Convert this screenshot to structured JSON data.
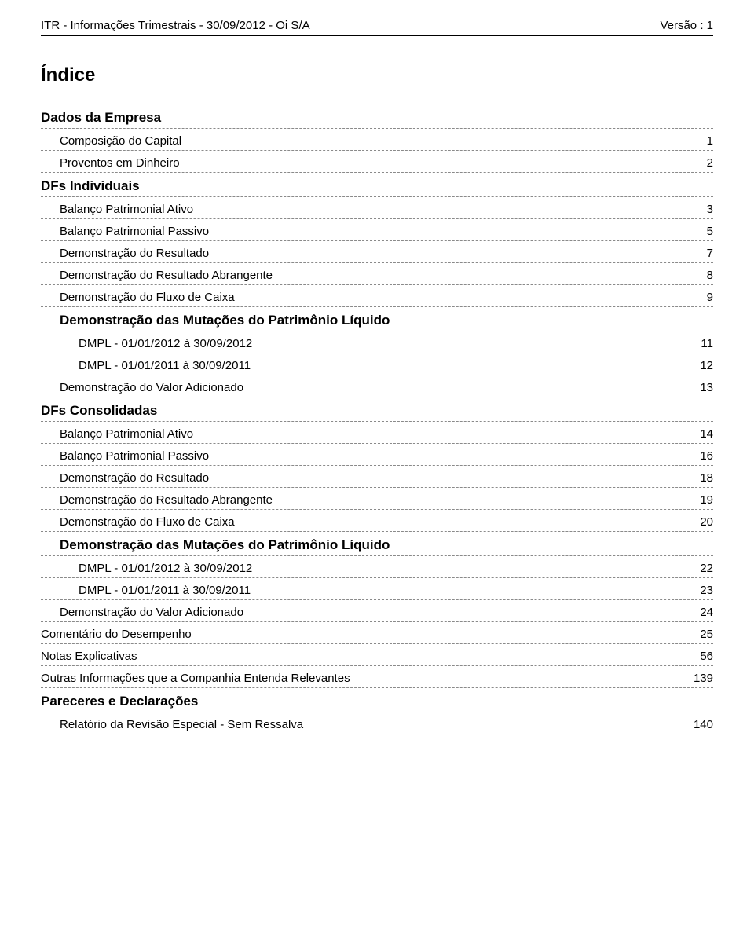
{
  "header": {
    "left": "ITR - Informações Trimestrais - 30/09/2012 - Oi S/A",
    "right": "Versão : 1"
  },
  "title": "Índice",
  "toc": [
    {
      "label": "Dados da Empresa",
      "page": "",
      "level": 0,
      "bold": true,
      "name": "toc-dados-empresa"
    },
    {
      "label": "Composição do Capital",
      "page": "1",
      "level": 1,
      "bold": false,
      "name": "toc-composicao-capital"
    },
    {
      "label": "Proventos em Dinheiro",
      "page": "2",
      "level": 1,
      "bold": false,
      "name": "toc-proventos-dinheiro"
    },
    {
      "label": "DFs Individuais",
      "page": "",
      "level": 0,
      "bold": true,
      "name": "toc-dfs-individuais"
    },
    {
      "label": "Balanço Patrimonial Ativo",
      "page": "3",
      "level": 1,
      "bold": false,
      "name": "toc-bp-ativo-ind"
    },
    {
      "label": "Balanço Patrimonial Passivo",
      "page": "5",
      "level": 1,
      "bold": false,
      "name": "toc-bp-passivo-ind"
    },
    {
      "label": "Demonstração do Resultado",
      "page": "7",
      "level": 1,
      "bold": false,
      "name": "toc-dre-ind"
    },
    {
      "label": "Demonstração do Resultado Abrangente",
      "page": "8",
      "level": 1,
      "bold": false,
      "name": "toc-dra-ind"
    },
    {
      "label": "Demonstração do Fluxo de Caixa",
      "page": "9",
      "level": 1,
      "bold": false,
      "name": "toc-dfc-ind"
    },
    {
      "label": "Demonstração das Mutações do Patrimônio Líquido",
      "page": "",
      "level": 1,
      "bold": true,
      "name": "toc-dmpl-head-ind"
    },
    {
      "label": "DMPL - 01/01/2012 à 30/09/2012",
      "page": "11",
      "level": 2,
      "bold": false,
      "name": "toc-dmpl-2012-ind"
    },
    {
      "label": "DMPL - 01/01/2011 à 30/09/2011",
      "page": "12",
      "level": 2,
      "bold": false,
      "name": "toc-dmpl-2011-ind"
    },
    {
      "label": "Demonstração do Valor Adicionado",
      "page": "13",
      "level": 1,
      "bold": false,
      "name": "toc-dva-ind"
    },
    {
      "label": "DFs Consolidadas",
      "page": "",
      "level": 0,
      "bold": true,
      "name": "toc-dfs-consolidadas"
    },
    {
      "label": "Balanço Patrimonial Ativo",
      "page": "14",
      "level": 1,
      "bold": false,
      "name": "toc-bp-ativo-cons"
    },
    {
      "label": "Balanço Patrimonial Passivo",
      "page": "16",
      "level": 1,
      "bold": false,
      "name": "toc-bp-passivo-cons"
    },
    {
      "label": "Demonstração do Resultado",
      "page": "18",
      "level": 1,
      "bold": false,
      "name": "toc-dre-cons"
    },
    {
      "label": "Demonstração do Resultado Abrangente",
      "page": "19",
      "level": 1,
      "bold": false,
      "name": "toc-dra-cons"
    },
    {
      "label": "Demonstração do Fluxo de Caixa",
      "page": "20",
      "level": 1,
      "bold": false,
      "name": "toc-dfc-cons"
    },
    {
      "label": "Demonstração das Mutações do Patrimônio Líquido",
      "page": "",
      "level": 1,
      "bold": true,
      "name": "toc-dmpl-head-cons"
    },
    {
      "label": "DMPL - 01/01/2012 à 30/09/2012",
      "page": "22",
      "level": 2,
      "bold": false,
      "name": "toc-dmpl-2012-cons"
    },
    {
      "label": "DMPL - 01/01/2011 à 30/09/2011",
      "page": "23",
      "level": 2,
      "bold": false,
      "name": "toc-dmpl-2011-cons"
    },
    {
      "label": "Demonstração do Valor Adicionado",
      "page": "24",
      "level": 1,
      "bold": false,
      "name": "toc-dva-cons"
    },
    {
      "label": "Comentário do Desempenho",
      "page": "25",
      "level": 0,
      "bold": false,
      "name": "toc-comentario-desempenho"
    },
    {
      "label": "Notas Explicativas",
      "page": "56",
      "level": 0,
      "bold": false,
      "name": "toc-notas-explicativas"
    },
    {
      "label": "Outras Informações que a Companhia Entenda Relevantes",
      "page": "139",
      "level": 0,
      "bold": false,
      "name": "toc-outras-informacoes"
    },
    {
      "label": "Pareceres e Declarações",
      "page": "",
      "level": 0,
      "bold": true,
      "name": "toc-pareceres-declaracoes"
    },
    {
      "label": "Relatório da Revisão Especial - Sem Ressalva",
      "page": "140",
      "level": 1,
      "bold": false,
      "name": "toc-relatorio-revisao"
    }
  ]
}
